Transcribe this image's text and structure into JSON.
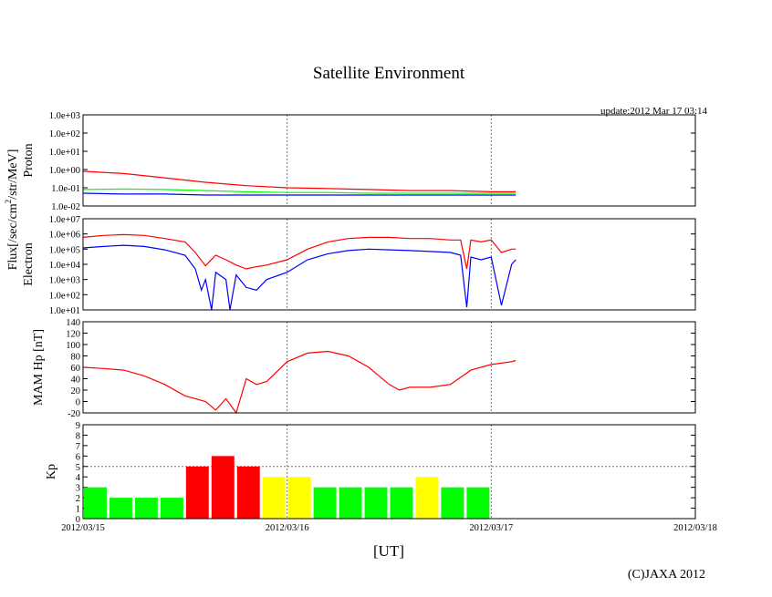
{
  "title": "Satellite Environment",
  "update": "update:2012 Mar 17 03:14",
  "copyright": "(C)JAXA 2012",
  "xlabel": "[UT]",
  "x_ticks": [
    "2012/03/15",
    "2012/03/16",
    "2012/03/17",
    "2012/03/18"
  ],
  "flux_label": "Flux[/sec/cm²/str/MeV]",
  "colors": {
    "red": "#ff0000",
    "blue": "#0000ff",
    "green": "#00ff00",
    "yellow": "#ffff00",
    "kp_green": "#00ff00"
  },
  "chart_data": [
    {
      "type": "line",
      "panel": "proton",
      "ylabel": "Proton",
      "yscale": "log",
      "ylim": [
        0.01,
        1000
      ],
      "yticks": [
        "1.0e-02",
        "1.0e-01",
        "1.0e+00",
        "1.0e+01",
        "1.0e+02",
        "1.0e+03"
      ],
      "x_unit": "days since 2012/03/15 00:00 UT",
      "series": [
        {
          "color": "red",
          "x": [
            0,
            0.2,
            0.4,
            0.6,
            0.8,
            1.0,
            1.2,
            1.4,
            1.6,
            1.8,
            2.0,
            2.12
          ],
          "y": [
            0.8,
            0.6,
            0.35,
            0.2,
            0.13,
            0.1,
            0.09,
            0.08,
            0.07,
            0.07,
            0.06,
            0.06
          ]
        },
        {
          "color": "green",
          "x": [
            0,
            0.2,
            0.4,
            0.6,
            0.8,
            1.0,
            1.2,
            1.4,
            1.6,
            1.8,
            2.0,
            2.12
          ],
          "y": [
            0.08,
            0.085,
            0.08,
            0.07,
            0.06,
            0.055,
            0.055,
            0.05,
            0.05,
            0.05,
            0.05,
            0.05
          ]
        },
        {
          "color": "blue",
          "x": [
            0,
            0.2,
            0.4,
            0.6,
            0.8,
            1.0,
            1.2,
            1.4,
            1.6,
            1.8,
            2.0,
            2.12
          ],
          "y": [
            0.05,
            0.045,
            0.045,
            0.04,
            0.04,
            0.04,
            0.04,
            0.04,
            0.04,
            0.04,
            0.04,
            0.04
          ]
        }
      ]
    },
    {
      "type": "line",
      "panel": "electron",
      "ylabel": "Electron",
      "yscale": "log",
      "ylim": [
        10,
        10000000
      ],
      "yticks": [
        "1.0e+01",
        "1.0e+02",
        "1.0e+03",
        "1.0e+04",
        "1.0e+05",
        "1.0e+06",
        "1.0e+07"
      ],
      "x_unit": "days since 2012/03/15 00:00 UT",
      "series": [
        {
          "color": "red",
          "x": [
            0,
            0.1,
            0.2,
            0.3,
            0.4,
            0.5,
            0.55,
            0.6,
            0.65,
            0.7,
            0.75,
            0.8,
            0.85,
            0.9,
            1.0,
            1.1,
            1.2,
            1.3,
            1.4,
            1.5,
            1.6,
            1.7,
            1.8,
            1.85,
            1.88,
            1.9,
            1.95,
            2.0,
            2.05,
            2.1,
            2.12
          ],
          "y": [
            600000,
            800000,
            900000,
            800000,
            500000,
            300000,
            60000,
            8000,
            40000,
            20000,
            9000,
            5000,
            7000,
            9000,
            20000,
            100000,
            300000,
            500000,
            600000,
            600000,
            500000,
            500000,
            400000,
            400000,
            5000,
            400000,
            300000,
            400000,
            60000,
            100000,
            100000
          ]
        },
        {
          "color": "blue",
          "x": [
            0,
            0.1,
            0.2,
            0.3,
            0.4,
            0.5,
            0.55,
            0.58,
            0.6,
            0.63,
            0.65,
            0.7,
            0.72,
            0.75,
            0.8,
            0.85,
            0.9,
            1.0,
            1.1,
            1.2,
            1.3,
            1.4,
            1.5,
            1.6,
            1.7,
            1.8,
            1.85,
            1.88,
            1.9,
            1.95,
            2.0,
            2.05,
            2.1,
            2.12
          ],
          "y": [
            120000,
            150000,
            180000,
            150000,
            90000,
            40000,
            5000,
            200,
            1000,
            10,
            3000,
            1000,
            10,
            2000,
            300,
            200,
            1000,
            3000,
            20000,
            50000,
            80000,
            100000,
            90000,
            80000,
            70000,
            60000,
            40000,
            15,
            30000,
            20000,
            30000,
            20,
            10000,
            20000
          ]
        }
      ]
    },
    {
      "type": "line",
      "panel": "mam_hp",
      "ylabel": "MAM Hp [nT]",
      "ylim": [
        -20,
        140
      ],
      "yticks": [
        "-20",
        "0",
        "20",
        "40",
        "60",
        "80",
        "100",
        "120",
        "140"
      ],
      "x_unit": "days since 2012/03/15 00:00 UT",
      "series": [
        {
          "color": "red",
          "x": [
            0,
            0.1,
            0.2,
            0.3,
            0.4,
            0.5,
            0.55,
            0.6,
            0.65,
            0.7,
            0.75,
            0.8,
            0.85,
            0.9,
            1.0,
            1.1,
            1.2,
            1.3,
            1.4,
            1.5,
            1.55,
            1.6,
            1.7,
            1.8,
            1.9,
            2.0,
            2.1,
            2.12
          ],
          "y": [
            60,
            58,
            55,
            45,
            30,
            10,
            5,
            0,
            -15,
            5,
            -20,
            40,
            30,
            35,
            70,
            85,
            88,
            80,
            60,
            30,
            20,
            25,
            25,
            30,
            55,
            65,
            70,
            72
          ]
        }
      ]
    },
    {
      "type": "bar",
      "panel": "kp",
      "ylabel": "Kp",
      "ylim": [
        0,
        9
      ],
      "yticks": [
        "0",
        "1",
        "2",
        "3",
        "4",
        "5",
        "6",
        "7",
        "8",
        "9"
      ],
      "x_unit": "3-hour intervals starting 2012/03/15 00:00 UT",
      "values": [
        3,
        2,
        2,
        2,
        5,
        6,
        5,
        4,
        4,
        3,
        3,
        3,
        3,
        4,
        3,
        3
      ],
      "bar_colors": [
        "green",
        "green",
        "green",
        "green",
        "red",
        "red",
        "red",
        "yellow",
        "yellow",
        "green",
        "green",
        "green",
        "green",
        "yellow",
        "green",
        "green"
      ]
    }
  ]
}
